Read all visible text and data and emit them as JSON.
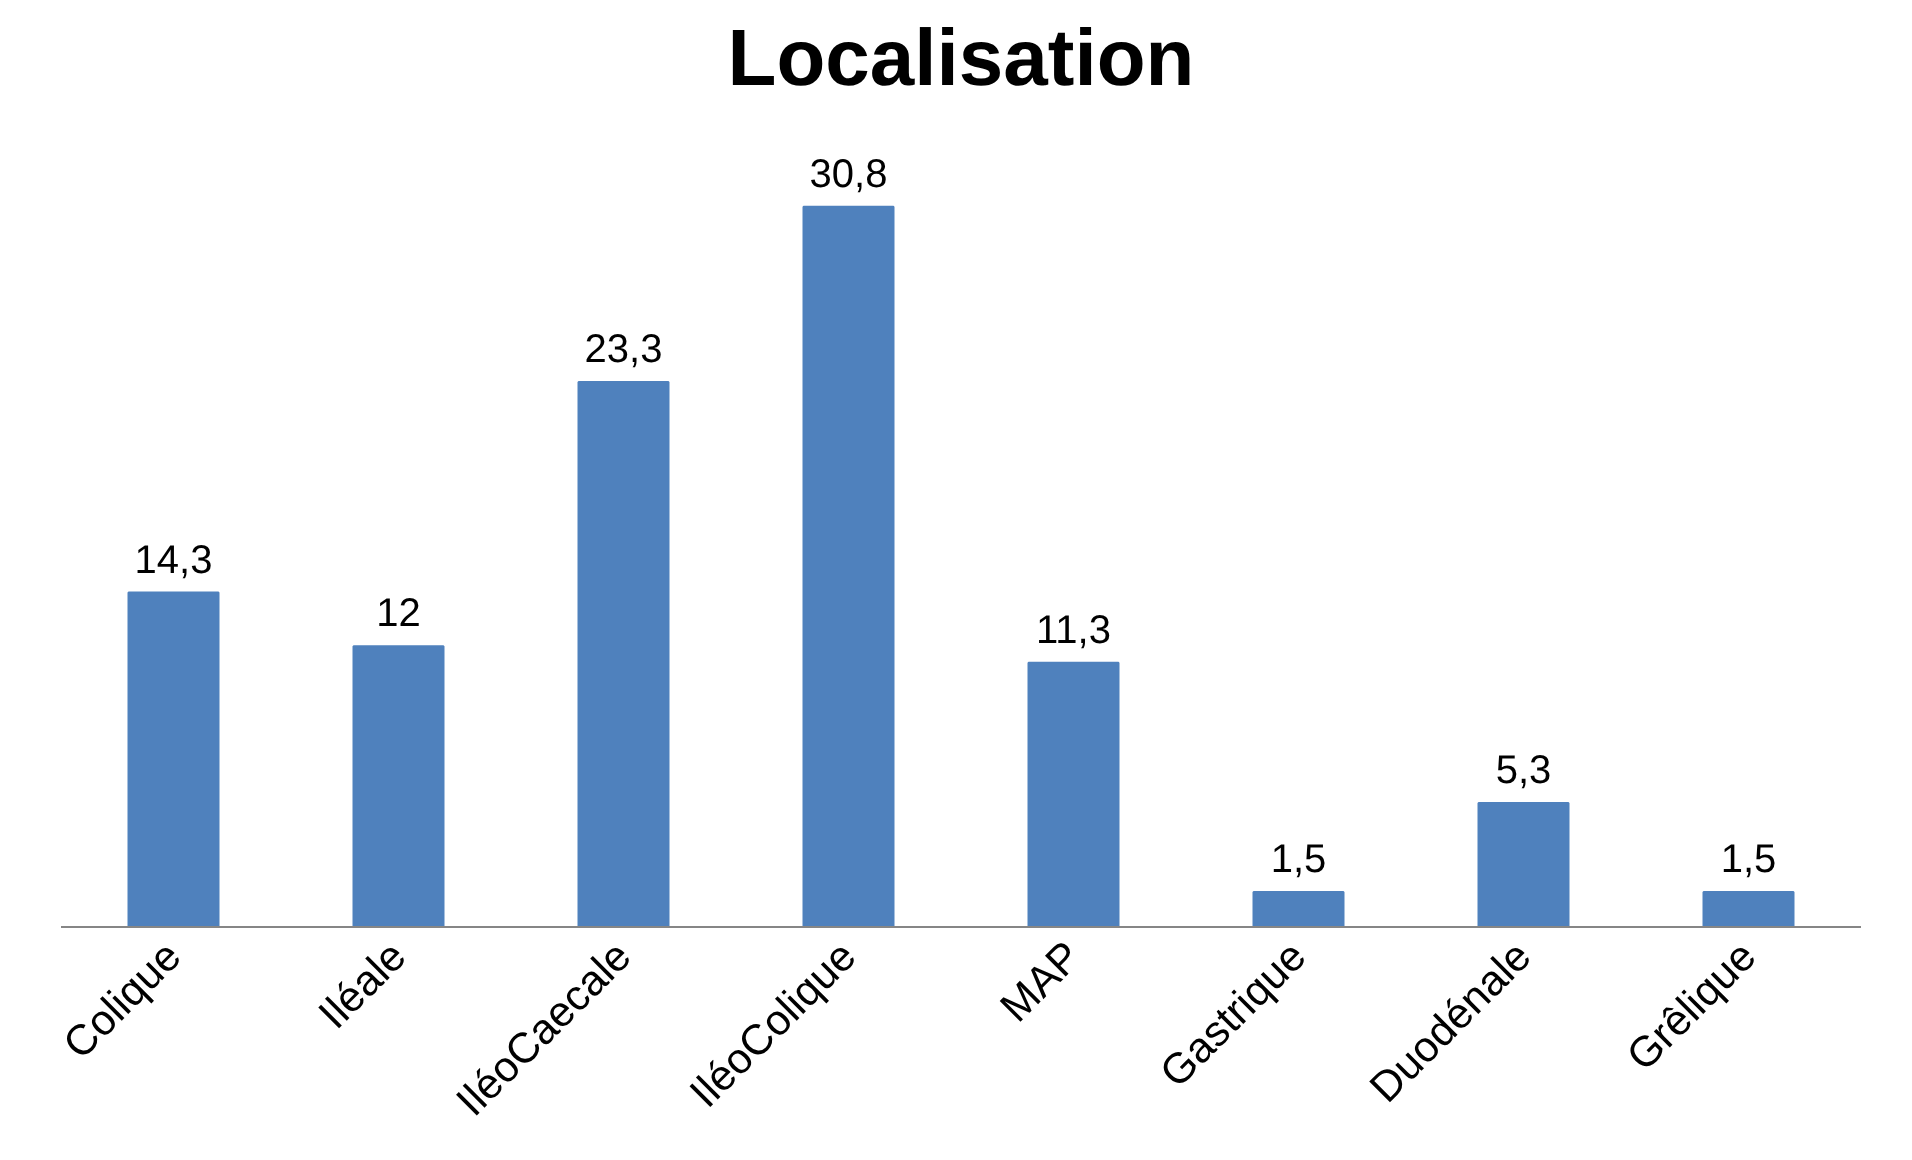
{
  "chart_data": {
    "type": "bar",
    "title": "Localisation",
    "categories": [
      "Colique",
      "Iléale",
      "IléoCaecale",
      "IléoColique",
      "MAP",
      "Gastrique",
      "Duodénale",
      "Grêlique"
    ],
    "values": [
      14.3,
      12,
      23.3,
      30.8,
      11.3,
      1.5,
      5.3,
      1.5
    ],
    "value_labels": [
      "14,3",
      "12",
      "23,3",
      "30,8",
      "11,3",
      "1,5",
      "5,3",
      "1,5"
    ],
    "color": "#4f81bd",
    "grid": false
  }
}
